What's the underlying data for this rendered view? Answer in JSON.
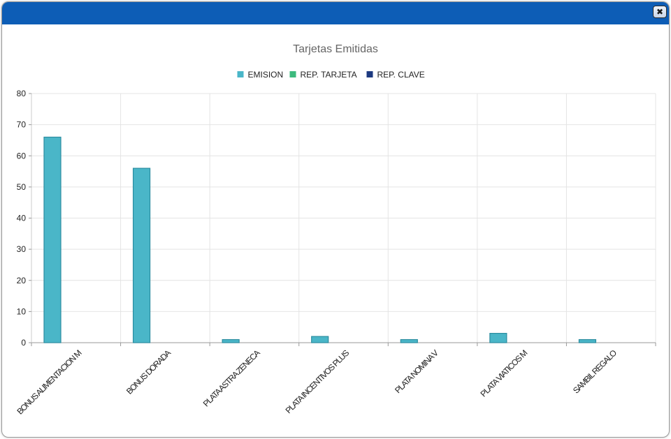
{
  "window": {
    "close_icon": "close-x-icon",
    "titlebar_color": "#0d5db6"
  },
  "chart_data": {
    "type": "bar",
    "title": "Tarjetas Emitidas",
    "categories": [
      "BONUS ALIMENTACION M",
      "BONUS DORADA",
      "PLATA ASTRA ZENECA",
      "PLATA INCENTIVOS PLUS",
      "PLATA NOMINA V",
      "PLATA VIATICOS M",
      "SAMBIL REGALO"
    ],
    "series": [
      {
        "name": "EMISION",
        "color": "#4ab6c8",
        "values": [
          66,
          56,
          1,
          2,
          1,
          3,
          1
        ]
      },
      {
        "name": "REP. TARJETA",
        "color": "#3dba7e",
        "values": [
          0,
          0,
          0,
          0,
          0,
          0,
          0
        ]
      },
      {
        "name": "REP. CLAVE",
        "color": "#1d3a80",
        "values": [
          0,
          0,
          0,
          0,
          0,
          0,
          0
        ]
      }
    ],
    "ylim": [
      0,
      80
    ],
    "yticks": [
      0,
      10,
      20,
      30,
      40,
      50,
      60,
      70,
      80
    ],
    "grid": true,
    "legend_position": "top-center"
  }
}
